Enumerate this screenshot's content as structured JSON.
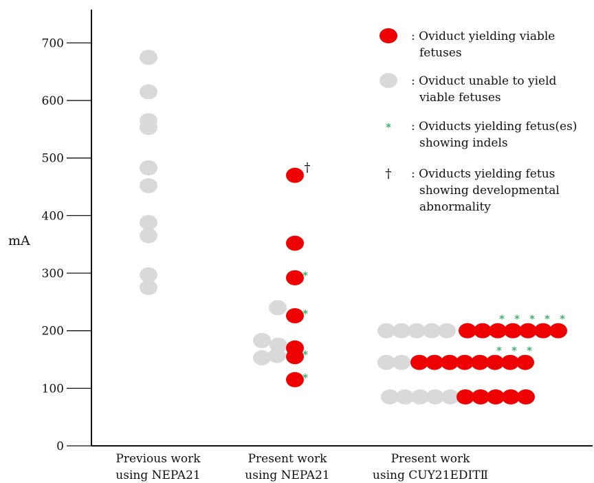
{
  "colors": {
    "viable": "#ee0000",
    "unviable": "#d9d9d9",
    "indel_marker": "#3cb371",
    "axis": "#111111"
  },
  "legend": {
    "items": [
      {
        "marker": "red-ellipse",
        "lines": [
          ": Oviduct yielding  viable",
          "fetuses"
        ]
      },
      {
        "marker": "gray-ellipse",
        "lines": [
          ": Oviduct unable to yield",
          "viable fetuses"
        ]
      },
      {
        "marker": "*",
        "lines": [
          ": Oviducts yielding fetus(es)",
          "showing indels"
        ]
      },
      {
        "marker": "†",
        "lines": [
          ": Oviducts yielding fetus",
          "showing developmental",
          "abnormality"
        ]
      }
    ]
  },
  "chart_data": {
    "type": "scatter",
    "title": "",
    "xlabel": "",
    "ylabel": "mA",
    "ylim": [
      0,
      700
    ],
    "yticks": [
      0,
      100,
      200,
      300,
      400,
      500,
      600,
      700
    ],
    "grid": false,
    "legend_position": "top-right",
    "categories": [
      {
        "lines": [
          "Previous work",
          "using NEPA21"
        ]
      },
      {
        "lines": [
          "Present work",
          "using NEPA21"
        ]
      },
      {
        "lines": [
          "Present work",
          "using CUY21EDITⅡ"
        ]
      }
    ],
    "series": [
      {
        "name": "Previous work using NEPA21",
        "points": [
          {
            "y": 675,
            "status": "unviable"
          },
          {
            "y": 615,
            "status": "unviable"
          },
          {
            "y": 565,
            "status": "unviable"
          },
          {
            "y": 553,
            "status": "unviable"
          },
          {
            "y": 483,
            "status": "unviable"
          },
          {
            "y": 452,
            "status": "unviable"
          },
          {
            "y": 388,
            "status": "unviable"
          },
          {
            "y": 365,
            "status": "unviable"
          },
          {
            "y": 297,
            "status": "unviable"
          },
          {
            "y": 275,
            "status": "unviable"
          }
        ]
      },
      {
        "name": "Present work using NEPA21",
        "points": [
          {
            "y": 470,
            "status": "viable",
            "dagger": true
          },
          {
            "y": 352,
            "status": "viable"
          },
          {
            "y": 292,
            "status": "viable",
            "indel": true
          },
          {
            "y": 240,
            "status": "unviable"
          },
          {
            "y": 226,
            "status": "viable",
            "indel": true
          },
          {
            "y": 183,
            "status": "unviable"
          },
          {
            "y": 175,
            "status": "unviable"
          },
          {
            "y": 170,
            "status": "viable"
          },
          {
            "y": 157,
            "status": "unviable"
          },
          {
            "y": 153,
            "status": "unviable"
          },
          {
            "y": 155,
            "status": "viable",
            "indel": true
          },
          {
            "y": 115,
            "status": "viable",
            "indel": true
          }
        ]
      },
      {
        "name": "Present work using CUY21EDITⅡ",
        "rows": [
          {
            "y": 200,
            "unviable": 5,
            "viable": 7,
            "indels": 5
          },
          {
            "y": 145,
            "unviable": 2,
            "viable": 8,
            "indels": 3
          },
          {
            "y": 85,
            "unviable": 5,
            "viable": 5,
            "indels": 0
          }
        ]
      }
    ]
  }
}
